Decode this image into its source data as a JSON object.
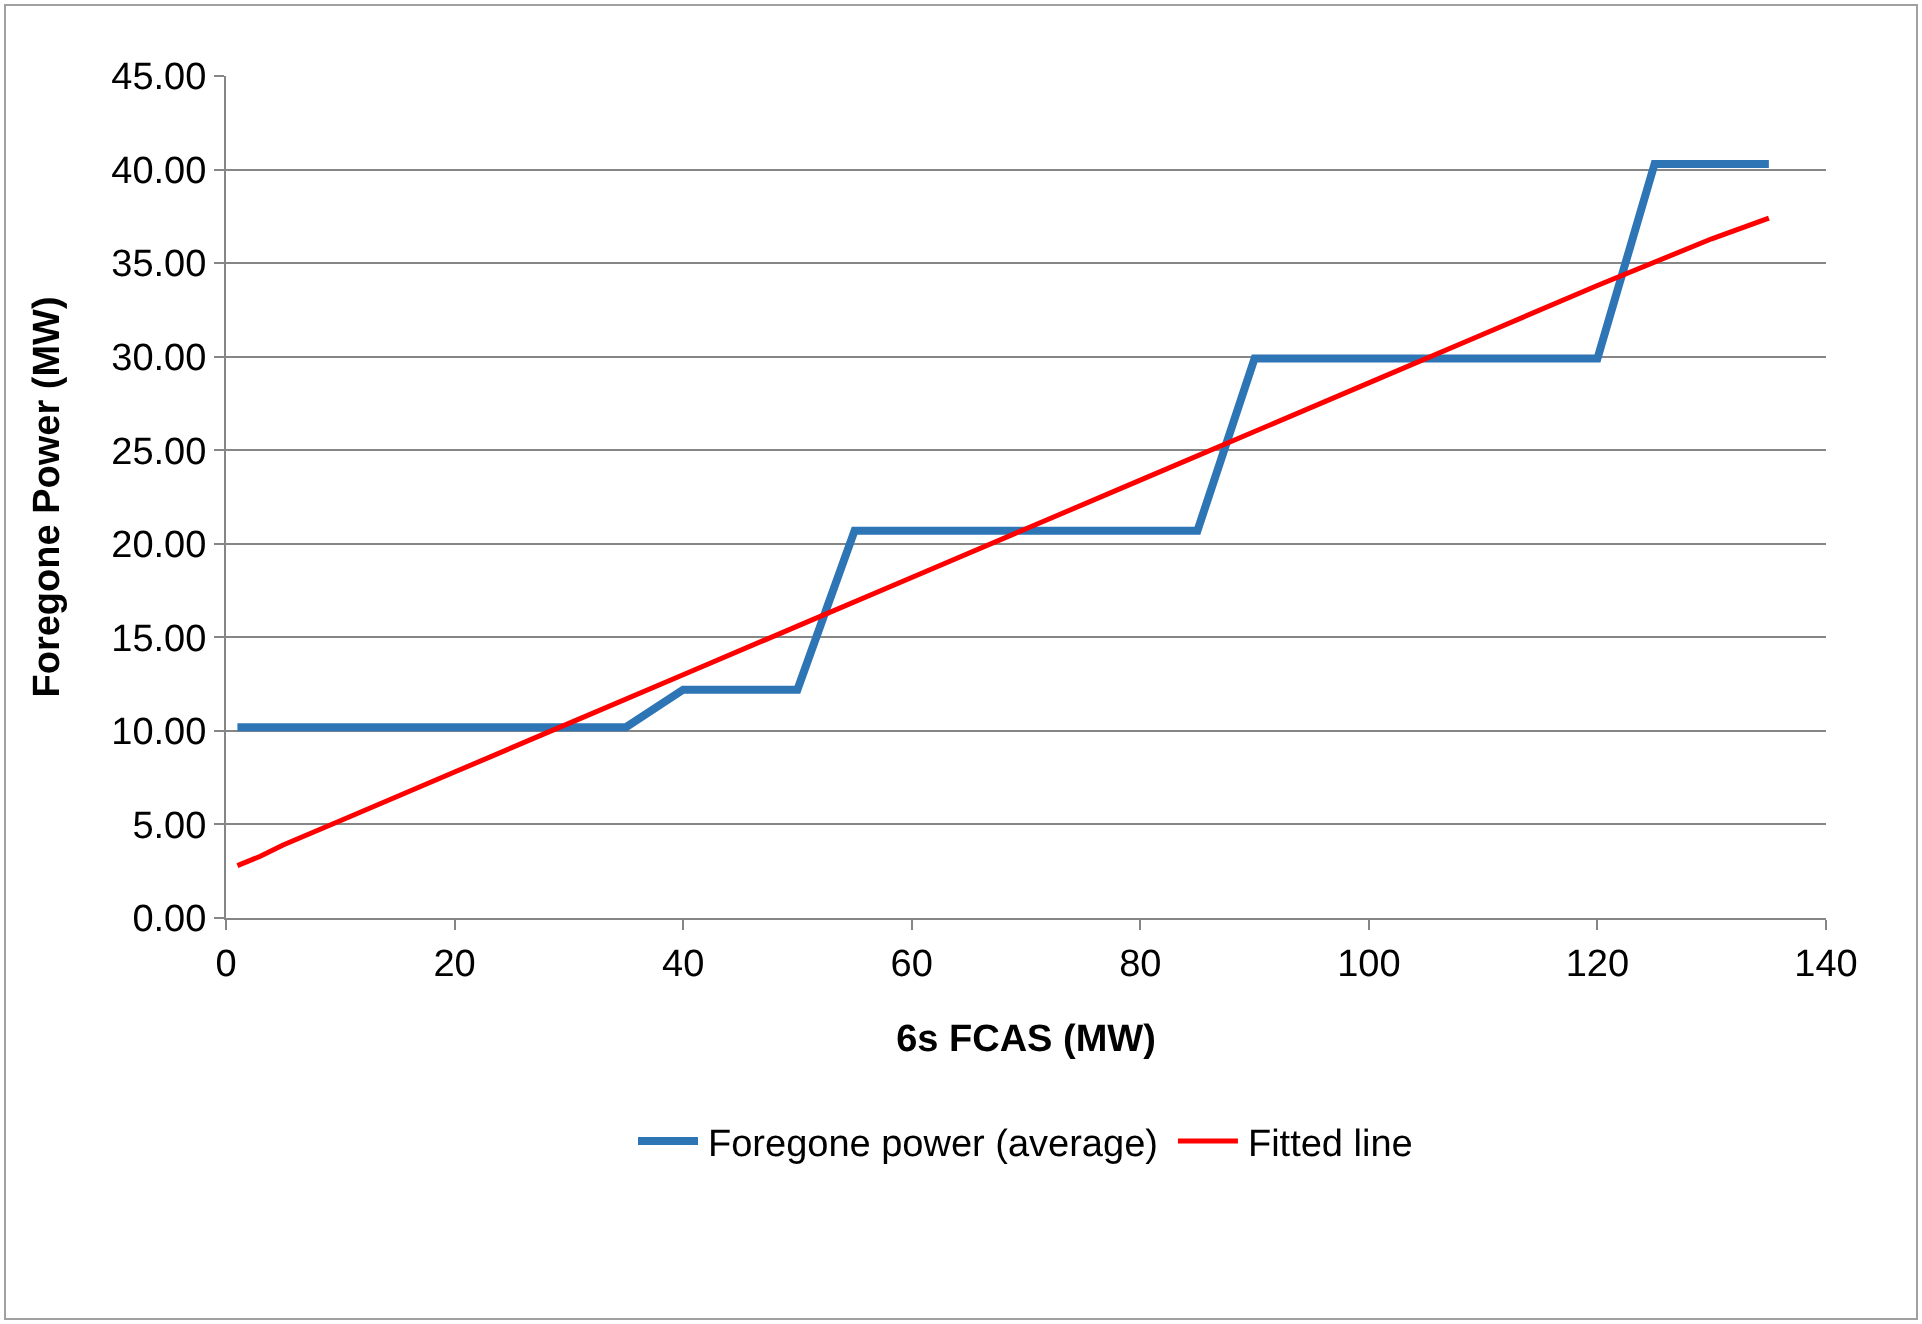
{
  "chart_data": {
    "type": "line",
    "xlabel": "6s FCAS (MW)",
    "ylabel": "Foregone Power (MW)",
    "xlim": [
      0,
      140
    ],
    "xticks": [
      0,
      20,
      40,
      60,
      80,
      100,
      120,
      140
    ],
    "ylim": [
      0,
      45
    ],
    "yticks": [
      {
        "value": 0,
        "label": "0.00"
      },
      {
        "value": 5,
        "label": "5.00"
      },
      {
        "value": 10,
        "label": "10.00"
      },
      {
        "value": 15,
        "label": "15.00"
      },
      {
        "value": 20,
        "label": "20.00"
      },
      {
        "value": 25,
        "label": "25.00"
      },
      {
        "value": 30,
        "label": "30.00"
      },
      {
        "value": 35,
        "label": "35.00"
      },
      {
        "value": 40,
        "label": "40.00"
      },
      {
        "value": 45,
        "label": "45.00"
      }
    ],
    "grid": "y",
    "legend": "bottom",
    "marker": "none",
    "line_style": "solid",
    "series": [
      {
        "name": "Foregone power (average)",
        "color": "#2e75b6",
        "x": [
          1,
          35,
          40,
          50,
          55,
          85,
          90,
          120,
          125,
          135
        ],
        "values": [
          10.2,
          10.2,
          12.2,
          12.2,
          20.7,
          20.7,
          29.9,
          29.9,
          40.3,
          40.3
        ]
      },
      {
        "name": "Fitted line",
        "color": "#ff0000",
        "x": [
          1,
          3,
          5,
          10,
          20,
          30,
          40,
          50,
          60,
          70,
          80,
          90,
          100,
          110,
          120,
          130,
          135
        ],
        "values": [
          2.8,
          3.3,
          3.9,
          5.2,
          7.8,
          10.4,
          13.0,
          15.6,
          18.2,
          20.8,
          23.4,
          26.0,
          28.6,
          31.2,
          33.8,
          36.3,
          37.4
        ]
      }
    ]
  }
}
